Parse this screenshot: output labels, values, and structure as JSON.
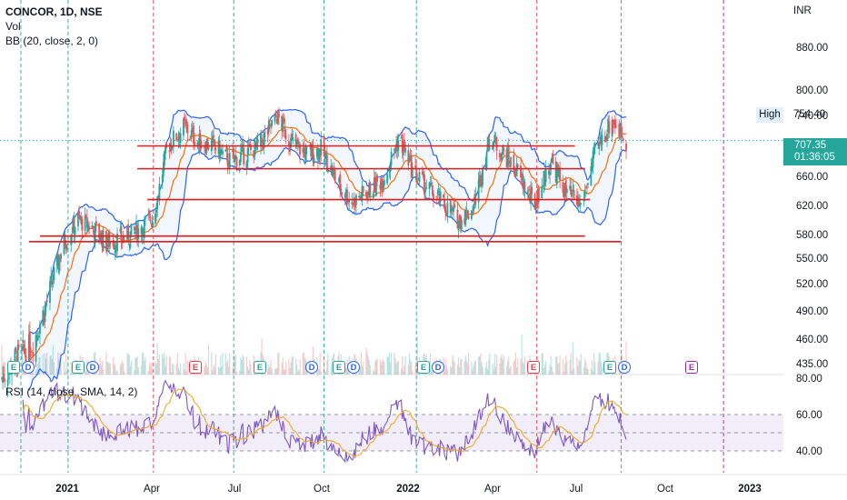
{
  "legend": {
    "symbol": "CONCOR, 1D, NSE",
    "vol": "Vol",
    "bb": "BB (20, close, 2, 0)",
    "rsi": "RSI (14, close, SMA, 14, 2)"
  },
  "price_axis": {
    "currency": "INR",
    "ticks": [
      "880.00",
      "800.00",
      "740.00",
      "660.00",
      "620.00",
      "580.00",
      "550.00",
      "520.00",
      "490.00",
      "460.00",
      "435.00"
    ],
    "tick_values": [
      880,
      800,
      740,
      660,
      620,
      580,
      550,
      520,
      490,
      460,
      435
    ],
    "high_label": "High",
    "high_value": "754.40",
    "last_price": "707.35",
    "countdown": "01:36:05"
  },
  "rsi_axis": {
    "ticks": [
      "80.00",
      "60.00",
      "40.00"
    ],
    "tick_values": [
      80,
      60,
      40
    ],
    "band": [
      40,
      60
    ]
  },
  "time_axis": [
    "2021",
    "Apr",
    "Jul",
    "Oct",
    "2022",
    "Apr",
    "Jul",
    "Oct",
    "2023"
  ],
  "events": [
    {
      "type": "E",
      "color": "green"
    },
    {
      "type": "D",
      "color": "blue"
    },
    {
      "type": "E",
      "color": "green"
    },
    {
      "type": "D",
      "color": "blue"
    },
    {
      "type": "E",
      "color": "red"
    },
    {
      "type": "E",
      "color": "green"
    },
    {
      "type": "D",
      "color": "blue"
    },
    {
      "type": "E",
      "color": "green"
    },
    {
      "type": "D",
      "color": "blue"
    },
    {
      "type": "E",
      "color": "green"
    },
    {
      "type": "D",
      "color": "blue"
    },
    {
      "type": "E",
      "color": "red"
    },
    {
      "type": "E",
      "color": "green"
    },
    {
      "type": "D",
      "color": "blue"
    },
    {
      "type": "E",
      "color": "purple"
    }
  ],
  "colors": {
    "up": "#26a69a",
    "down": "#ef5350",
    "bb_band": "#2962ff",
    "bb_basis": "#ff6d00",
    "rsi_line": "#7e57c2",
    "rsi_ma": "#f5a623",
    "sr_lines": "#e21b1b"
  },
  "chart_data": {
    "type": "candlestick",
    "title": "CONCOR, 1D, NSE",
    "x_range": [
      "2020-12",
      "2023-01"
    ],
    "y_range": [
      435,
      900
    ],
    "price_path": [
      [
        "2020-12-01",
        420
      ],
      [
        "2020-12-15",
        440
      ],
      [
        "2021-01-01",
        455
      ],
      [
        "2021-01-15",
        500
      ],
      [
        "2021-02-01",
        570
      ],
      [
        "2021-02-15",
        600
      ],
      [
        "2021-03-01",
        590
      ],
      [
        "2021-03-15",
        570
      ],
      [
        "2021-04-01",
        575
      ],
      [
        "2021-04-15",
        585
      ],
      [
        "2021-05-01",
        605
      ],
      [
        "2021-05-15",
        700
      ],
      [
        "2021-06-01",
        725
      ],
      [
        "2021-06-15",
        705
      ],
      [
        "2021-07-01",
        700
      ],
      [
        "2021-07-15",
        680
      ],
      [
        "2021-08-01",
        690
      ],
      [
        "2021-08-15",
        700
      ],
      [
        "2021-09-01",
        740
      ],
      [
        "2021-09-15",
        705
      ],
      [
        "2021-10-01",
        690
      ],
      [
        "2021-10-15",
        695
      ],
      [
        "2021-11-01",
        650
      ],
      [
        "2021-11-15",
        625
      ],
      [
        "2021-12-01",
        640
      ],
      [
        "2021-12-15",
        655
      ],
      [
        "2022-01-01",
        710
      ],
      [
        "2022-01-15",
        665
      ],
      [
        "2022-02-01",
        640
      ],
      [
        "2022-02-15",
        620
      ],
      [
        "2022-03-01",
        600
      ],
      [
        "2022-03-15",
        615
      ],
      [
        "2022-04-01",
        710
      ],
      [
        "2022-04-15",
        690
      ],
      [
        "2022-05-01",
        660
      ],
      [
        "2022-05-15",
        620
      ],
      [
        "2022-06-01",
        680
      ],
      [
        "2022-06-15",
        640
      ],
      [
        "2022-07-01",
        620
      ],
      [
        "2022-07-15",
        690
      ],
      [
        "2022-08-01",
        735
      ],
      [
        "2022-08-15",
        707
      ]
    ],
    "support_resistance": [
      700,
      670,
      628,
      578,
      571
    ],
    "rsi_range": [
      25,
      80
    ]
  }
}
